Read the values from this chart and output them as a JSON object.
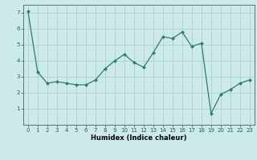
{
  "x": [
    0,
    1,
    2,
    3,
    4,
    5,
    6,
    7,
    8,
    9,
    10,
    11,
    12,
    13,
    14,
    15,
    16,
    17,
    18,
    19,
    20,
    21,
    22,
    23
  ],
  "y": [
    7.1,
    3.3,
    2.6,
    2.7,
    2.6,
    2.5,
    2.5,
    2.8,
    3.5,
    4.0,
    4.4,
    3.9,
    3.6,
    4.5,
    5.5,
    5.4,
    5.8,
    4.9,
    5.1,
    0.7,
    1.9,
    2.2,
    2.6,
    2.8
  ],
  "xlabel": "Humidex (Indice chaleur)",
  "line_color": "#2d7d6e",
  "marker": "D",
  "marker_size": 2.0,
  "line_width": 0.9,
  "bg_color": "#cceaea",
  "grid_color": "#aacaca",
  "ylim": [
    0,
    7.5
  ],
  "xlim": [
    -0.5,
    23.5
  ],
  "yticks": [
    1,
    2,
    3,
    4,
    5,
    6,
    7
  ],
  "xticks": [
    0,
    1,
    2,
    3,
    4,
    5,
    6,
    7,
    8,
    9,
    10,
    11,
    12,
    13,
    14,
    15,
    16,
    17,
    18,
    19,
    20,
    21,
    22,
    23
  ],
  "tick_fontsize": 5.0,
  "xlabel_fontsize": 6.0
}
